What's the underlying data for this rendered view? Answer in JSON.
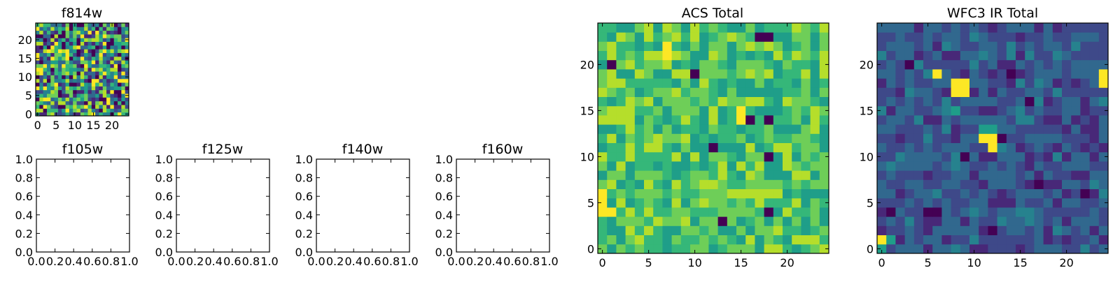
{
  "chart_data": [
    {
      "type": "heatmap",
      "title": "f814w",
      "grid_size": 25,
      "xlim": [
        -0.5,
        24.5
      ],
      "ylim": [
        -0.5,
        24.5
      ],
      "xticks": [
        0,
        5,
        10,
        15,
        20
      ],
      "yticks": [
        0,
        5,
        10,
        15,
        20
      ],
      "colormap": "viridis",
      "seed": 814,
      "profile": "uniform"
    },
    {
      "type": "empty",
      "title": "f105w",
      "xlim": [
        0,
        1
      ],
      "ylim": [
        0,
        1
      ],
      "xticks": [
        "0.0",
        "0.2",
        "0.4",
        "0.6",
        "0.8",
        "1.0"
      ],
      "yticks": [
        "0.0",
        "0.2",
        "0.4",
        "0.6",
        "0.8",
        "1.0"
      ]
    },
    {
      "type": "empty",
      "title": "f125w",
      "xlim": [
        0,
        1
      ],
      "ylim": [
        0,
        1
      ],
      "xticks": [
        "0.0",
        "0.2",
        "0.4",
        "0.6",
        "0.8",
        "1.0"
      ],
      "yticks": [
        "0.0",
        "0.2",
        "0.4",
        "0.6",
        "0.8",
        "1.0"
      ]
    },
    {
      "type": "empty",
      "title": "f140w",
      "xlim": [
        0,
        1
      ],
      "ylim": [
        0,
        1
      ],
      "xticks": [
        "0.0",
        "0.2",
        "0.4",
        "0.6",
        "0.8",
        "1.0"
      ],
      "yticks": [
        "0.0",
        "0.2",
        "0.4",
        "0.6",
        "0.8",
        "1.0"
      ]
    },
    {
      "type": "empty",
      "title": "f160w",
      "xlim": [
        0,
        1
      ],
      "ylim": [
        0,
        1
      ],
      "xticks": [
        "0.0",
        "0.2",
        "0.4",
        "0.6",
        "0.8",
        "1.0"
      ],
      "yticks": [
        "0.0",
        "0.2",
        "0.4",
        "0.6",
        "0.8",
        "1.0"
      ]
    },
    {
      "type": "heatmap",
      "title": "ACS Total",
      "grid_size": 25,
      "xlim": [
        -0.5,
        24.5
      ],
      "ylim": [
        -0.5,
        24.5
      ],
      "xticks": [
        0,
        5,
        10,
        15,
        20
      ],
      "yticks": [
        0,
        5,
        10,
        15,
        20
      ],
      "colormap": "viridis",
      "seed": 1234,
      "profile": "bright",
      "hot_cells": [
        [
          7,
          22
        ],
        [
          7,
          21
        ],
        [
          0,
          6
        ],
        [
          0,
          5
        ],
        [
          0,
          4
        ],
        [
          1,
          4
        ],
        [
          15,
          15
        ],
        [
          15,
          14
        ]
      ],
      "dark_cells": [
        [
          1,
          20
        ],
        [
          16,
          14
        ],
        [
          18,
          14
        ],
        [
          12,
          11
        ],
        [
          18,
          10
        ],
        [
          18,
          4
        ],
        [
          17,
          23
        ],
        [
          18,
          23
        ],
        [
          10,
          19
        ],
        [
          13,
          3
        ]
      ]
    },
    {
      "type": "heatmap",
      "title": "WFC3 IR Total",
      "grid_size": 25,
      "xlim": [
        -0.5,
        24.5
      ],
      "ylim": [
        -0.5,
        24.5
      ],
      "xticks": [
        0,
        5,
        10,
        15,
        20
      ],
      "yticks": [
        0,
        5,
        10,
        15,
        20
      ],
      "colormap": "viridis",
      "seed": 5678,
      "profile": "dark",
      "hot_cells": [
        [
          8,
          18
        ],
        [
          8,
          17
        ],
        [
          9,
          17
        ],
        [
          9,
          18
        ],
        [
          11,
          12
        ],
        [
          12,
          12
        ],
        [
          12,
          11
        ],
        [
          6,
          19
        ],
        [
          24,
          19
        ],
        [
          24,
          18
        ],
        [
          0,
          1
        ]
      ],
      "mid_cells": [
        [
          11,
          13
        ],
        [
          12,
          13
        ],
        [
          0,
          0
        ],
        [
          1,
          1
        ],
        [
          8,
          15
        ]
      ],
      "dark_cells": [
        [
          5,
          4
        ],
        [
          6,
          4
        ],
        [
          3,
          20
        ],
        [
          14,
          19
        ],
        [
          16,
          16
        ],
        [
          12,
          2
        ],
        [
          22,
          6
        ],
        [
          17,
          7
        ],
        [
          13,
          12
        ],
        [
          9,
          10
        ],
        [
          1,
          4
        ]
      ]
    }
  ]
}
